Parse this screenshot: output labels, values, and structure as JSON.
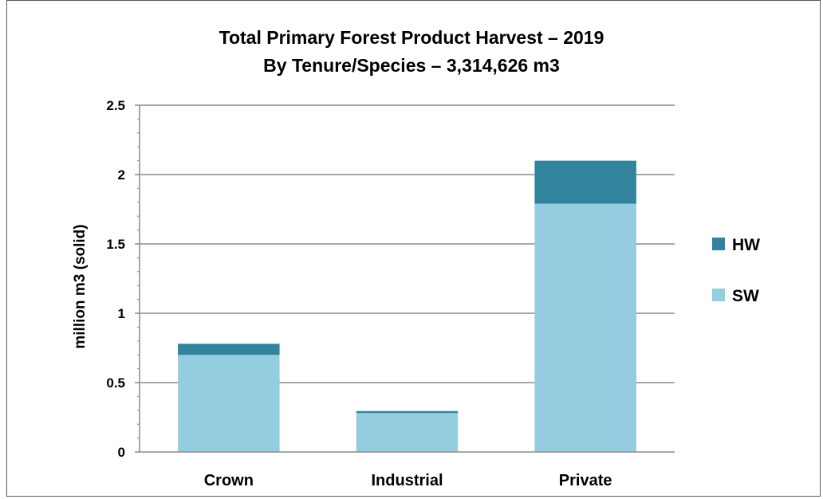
{
  "chart_data": {
    "type": "bar",
    "stacked": true,
    "title": "Total Primary Forest Product Harvest – 2019",
    "subtitle": "By Tenure/Species – 3,314,626 m3",
    "xlabel": "",
    "ylabel": "million m3 (solid)",
    "ylim": [
      0,
      2.5
    ],
    "yticks": [
      "0",
      "0.5",
      "1",
      "1.5",
      "2",
      "2.5"
    ],
    "grid": true,
    "legend_position": "right",
    "categories": [
      "Crown",
      "Industrial",
      "Private"
    ],
    "series": [
      {
        "name": "SW",
        "values": [
          0.7,
          0.28,
          1.79
        ],
        "color": "#94cddf"
      },
      {
        "name": "HW",
        "values": [
          0.08,
          0.015,
          0.31
        ],
        "color": "#31849b"
      }
    ],
    "legend_order": [
      "HW",
      "SW"
    ]
  }
}
